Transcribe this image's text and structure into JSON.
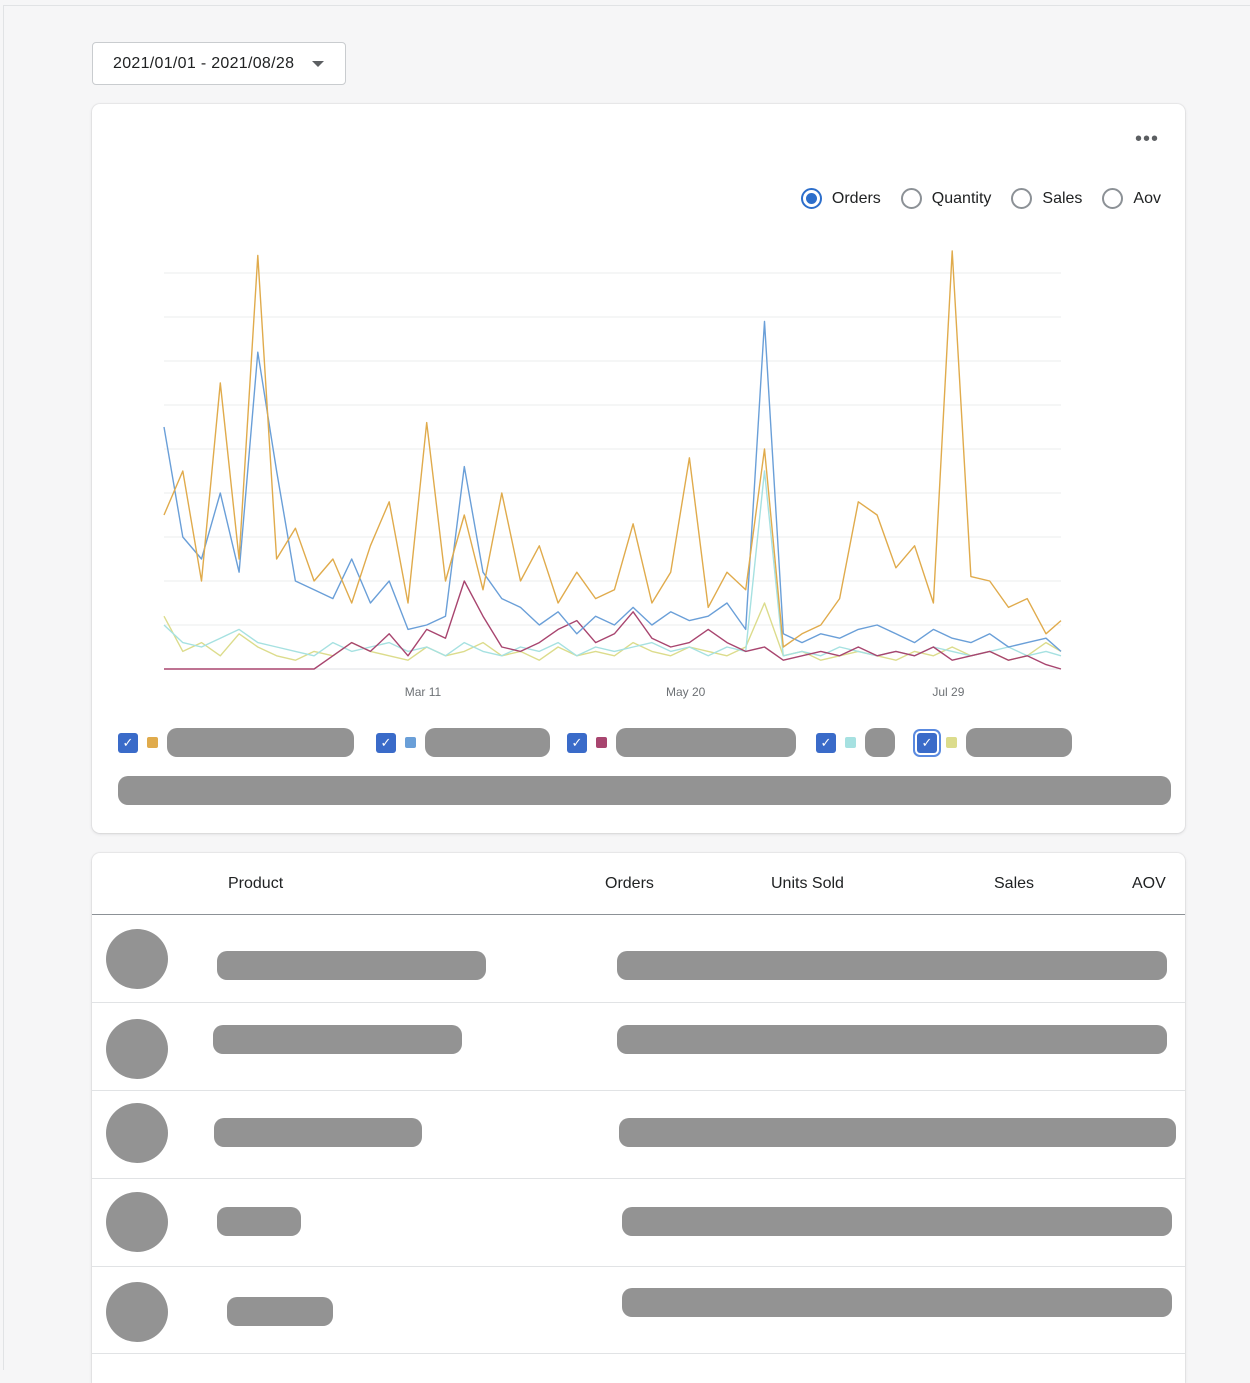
{
  "date_range": {
    "label": "2021/01/01 - 2021/08/28"
  },
  "chart_card": {
    "more_label": "•••",
    "metrics": [
      {
        "label": "Orders",
        "selected": true
      },
      {
        "label": "Quantity",
        "selected": false
      },
      {
        "label": "Sales",
        "selected": false
      },
      {
        "label": "Aov",
        "selected": false
      }
    ]
  },
  "chart_data": {
    "type": "line",
    "title": "",
    "xlabel": "",
    "ylabel": "",
    "x_ticks": [
      "Mar 11",
      "May 20",
      "Jul 29"
    ],
    "x_tick_dates": [
      "2021-03-11",
      "2021-05-20",
      "2021-07-29"
    ],
    "xlim": [
      "2021-01-01",
      "2021-08-28"
    ],
    "ylim": [
      0,
      9
    ],
    "grid": true,
    "legend": "bottom",
    "x": [
      "2021-01-01",
      "2021-01-06",
      "2021-01-11",
      "2021-01-16",
      "2021-01-21",
      "2021-01-26",
      "2021-01-31",
      "2021-02-05",
      "2021-02-10",
      "2021-02-15",
      "2021-02-20",
      "2021-02-25",
      "2021-03-02",
      "2021-03-07",
      "2021-03-12",
      "2021-03-17",
      "2021-03-22",
      "2021-03-27",
      "2021-04-01",
      "2021-04-06",
      "2021-04-11",
      "2021-04-16",
      "2021-04-21",
      "2021-04-26",
      "2021-05-01",
      "2021-05-06",
      "2021-05-11",
      "2021-05-16",
      "2021-05-21",
      "2021-05-26",
      "2021-05-31",
      "2021-06-05",
      "2021-06-10",
      "2021-06-15",
      "2021-06-20",
      "2021-06-25",
      "2021-06-30",
      "2021-07-05",
      "2021-07-10",
      "2021-07-15",
      "2021-07-20",
      "2021-07-25",
      "2021-07-30",
      "2021-08-04",
      "2021-08-09",
      "2021-08-14",
      "2021-08-19",
      "2021-08-24",
      "2021-08-28"
    ],
    "series": [
      {
        "color": "#dcdc8c",
        "checked": true,
        "values": [
          1.2,
          0.4,
          0.6,
          0.3,
          0.8,
          0.5,
          0.3,
          0.2,
          0.4,
          0.3,
          0.6,
          0.4,
          0.3,
          0.2,
          0.5,
          0.3,
          0.4,
          0.6,
          0.3,
          0.4,
          0.2,
          0.5,
          0.3,
          0.4,
          0.3,
          0.6,
          0.4,
          0.3,
          0.5,
          0.4,
          0.3,
          0.5,
          1.5,
          0.3,
          0.4,
          0.2,
          0.3,
          0.4,
          0.3,
          0.2,
          0.4,
          0.3,
          0.5,
          0.3,
          0.4,
          0.2,
          0.3,
          0.6,
          0.4
        ]
      },
      {
        "color": "#a6e1e1",
        "checked": true,
        "values": [
          1.0,
          0.6,
          0.5,
          0.7,
          0.9,
          0.6,
          0.5,
          0.4,
          0.3,
          0.6,
          0.4,
          0.5,
          0.6,
          0.4,
          0.5,
          0.3,
          0.6,
          0.4,
          0.3,
          0.5,
          0.4,
          0.6,
          0.3,
          0.5,
          0.4,
          0.5,
          0.6,
          0.4,
          0.5,
          0.3,
          0.5,
          0.4,
          4.5,
          0.3,
          0.4,
          0.3,
          0.5,
          0.4,
          0.3,
          0.4,
          0.3,
          0.5,
          0.4,
          0.3,
          0.4,
          0.5,
          0.3,
          0.4,
          0.3
        ]
      },
      {
        "color": "#a8456f",
        "checked": true,
        "values": [
          0,
          0,
          0,
          0,
          0,
          0,
          0,
          0,
          0,
          0.3,
          0.6,
          0.4,
          0.8,
          0.3,
          0.9,
          0.7,
          2.0,
          1.2,
          0.5,
          0.4,
          0.6,
          0.9,
          1.1,
          0.6,
          0.8,
          1.3,
          0.7,
          0.5,
          0.6,
          0.9,
          0.6,
          0.4,
          0.5,
          0.2,
          0.3,
          0.4,
          0.3,
          0.5,
          0.3,
          0.4,
          0.3,
          0.5,
          0.2,
          0.3,
          0.4,
          0.2,
          0.3,
          0.1,
          0.0
        ]
      },
      {
        "color": "#6a9fd8",
        "checked": true,
        "values": [
          5.5,
          3.0,
          2.5,
          4.0,
          2.2,
          7.2,
          4.5,
          2.0,
          1.8,
          1.6,
          2.5,
          1.5,
          2.0,
          0.9,
          1.0,
          1.2,
          4.6,
          2.2,
          1.6,
          1.4,
          1.0,
          1.3,
          0.8,
          1.2,
          1.0,
          1.4,
          1.0,
          1.3,
          1.1,
          1.2,
          1.5,
          0.9,
          7.9,
          0.8,
          0.6,
          0.8,
          0.7,
          0.9,
          1.0,
          0.8,
          0.6,
          0.9,
          0.7,
          0.6,
          0.8,
          0.5,
          0.6,
          0.7,
          0.4
        ]
      },
      {
        "color": "#e0ab4c",
        "checked": true,
        "values": [
          3.5,
          4.5,
          2.0,
          6.5,
          2.5,
          9.4,
          2.5,
          3.2,
          2.0,
          2.5,
          1.5,
          2.8,
          3.8,
          1.5,
          5.6,
          2.0,
          3.5,
          1.8,
          4.0,
          2.0,
          2.8,
          1.5,
          2.2,
          1.6,
          1.8,
          3.3,
          1.5,
          2.2,
          4.8,
          1.4,
          2.2,
          1.8,
          5.0,
          0.5,
          0.8,
          1.0,
          1.6,
          3.8,
          3.5,
          2.3,
          2.8,
          1.5,
          9.5,
          2.1,
          2.0,
          1.4,
          1.6,
          0.8,
          1.1
        ]
      }
    ]
  },
  "legend_colors": [
    "#e0ab4c",
    "#6a9fd8",
    "#a8456f",
    "#a6e1e1",
    "#dcdc8c"
  ],
  "table": {
    "headers": {
      "product": "Product",
      "orders": "Orders",
      "units_sold": "Units Sold",
      "sales": "Sales",
      "aov": "AOV"
    }
  }
}
